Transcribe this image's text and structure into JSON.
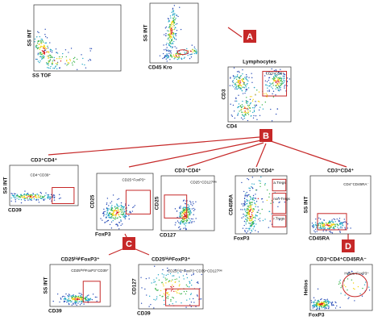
{
  "letters": [
    "A",
    "B",
    "C",
    "D"
  ],
  "panels": [
    {
      "x_label": "SS TOF",
      "y_label": "SS INT"
    },
    {
      "x_label": "CD45 Kro",
      "y_label": "SS INT"
    },
    {
      "title": "Lymphocytes",
      "x_label": "CD4",
      "y_label": "CD3",
      "gates": [
        "CD3⁺CD4⁺"
      ]
    },
    {
      "title": "CD3⁺CD4⁺",
      "x_label": "CD39",
      "y_label": "SS INT",
      "gates": [
        "CD4⁺CD39⁺"
      ]
    },
    {
      "x_label": "FoxP3",
      "y_label": "CD25",
      "gates": [
        "CD25⁺FoxP3⁺"
      ]
    },
    {
      "title": "CD3⁺CD4⁺",
      "x_label": "CD127",
      "y_label": "CD25",
      "gates": [
        "CD25⁺CD127ˡᵒʷ"
      ]
    },
    {
      "title": "CD3⁺CD4⁺",
      "x_label": "FoxP3",
      "y_label": "CD45RA",
      "gates": [
        "a.Tregs",
        "non-Tregs",
        "r.Tregs"
      ]
    },
    {
      "title": "CD3⁺CD4⁺",
      "x_label": "CD45RA",
      "y_label": "SS INT",
      "gates": [
        "CD4⁺CD45RA⁻"
      ]
    },
    {
      "title": "CD25ʰⁱᵍʰFoxP3⁺",
      "x_label": "CD39",
      "y_label": "SS INT",
      "gates": [
        "CD25ʰⁱᵍʰFoxP3⁺CD39⁺"
      ]
    },
    {
      "title": "CD25ʰⁱᵍʰFoxP3⁺",
      "x_label": "CD39",
      "y_label": "CD127",
      "gates": [
        "CD25ʰⁱᵍʰ⁺FoxP3⁺CD39⁺CD127ˡᵒʷ"
      ]
    },
    {
      "title": "CD3⁺CD4⁺CD45RA⁻",
      "x_label": "FoxP3",
      "y_label": "Helios",
      "gates": [
        "Helios⁺FoxP3⁺"
      ]
    }
  ]
}
